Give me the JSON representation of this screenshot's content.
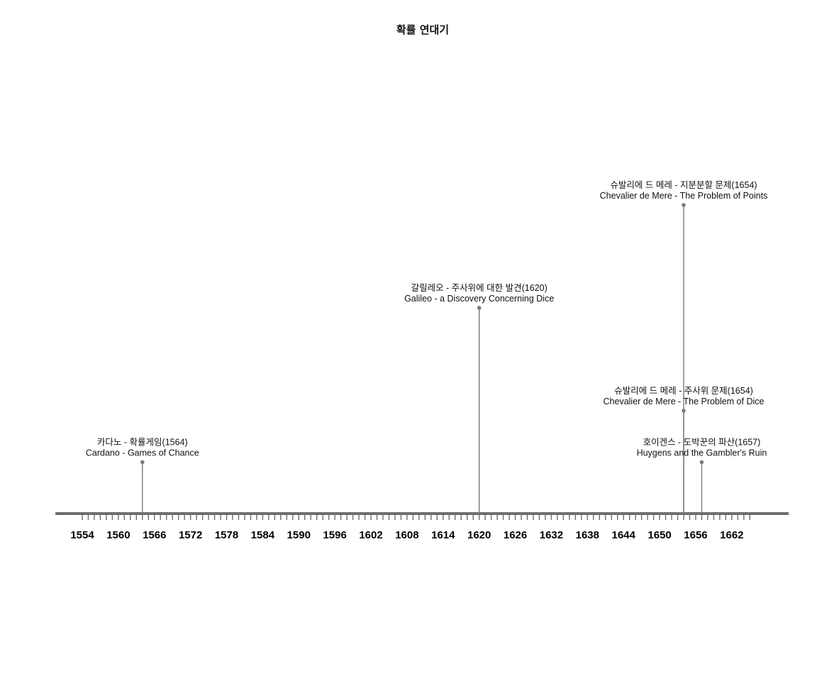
{
  "chart_data": {
    "type": "timeline",
    "title": "확률 연대기",
    "xlim": [
      1551,
      1666
    ],
    "tick_labels": [
      1554,
      1560,
      1566,
      1572,
      1578,
      1584,
      1590,
      1596,
      1602,
      1608,
      1614,
      1620,
      1626,
      1632,
      1638,
      1644,
      1650,
      1656,
      1662
    ],
    "events": [
      {
        "year": 1564,
        "height": 1.0,
        "label_ko": "카다노 - 확률게임(1564)",
        "label_en": "Cardano - Games of Chance"
      },
      {
        "year": 1620,
        "height": 4.0,
        "label_ko": "갈릴레오 - 주사위에 대한 발견(1620)",
        "label_en": "Galileo - a Discovery Concerning Dice"
      },
      {
        "year": 1654,
        "height": 2.0,
        "label_ko": "슈발리에 드 메레 - 주사위 문제(1654)",
        "label_en": "Chevalier de Mere - The Problem of Dice"
      },
      {
        "year": 1654,
        "height": 6.0,
        "label_ko": "슈발리에 드 메레 - 지분분할 문제(1654)",
        "label_en": "Chevalier de Mere - The Problem of Points"
      },
      {
        "year": 1657,
        "height": 1.0,
        "label_ko": "호이겐스 - 도박꾼의 파산(1657)",
        "label_en": "Huygens and the Gambler's Ruin"
      }
    ],
    "colors": {
      "axis": "#6e6e6e",
      "stem": "#7a7a7a",
      "text": "#111111"
    }
  }
}
